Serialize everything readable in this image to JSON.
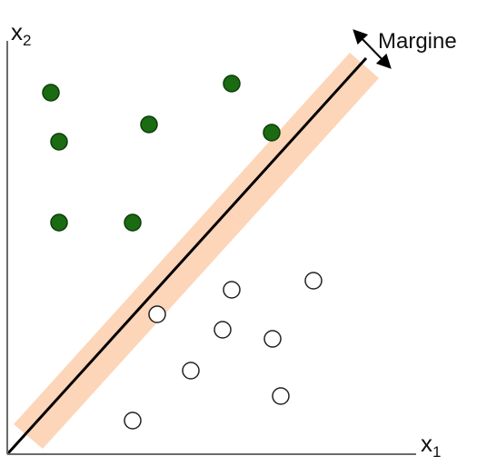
{
  "figure": {
    "axes": {
      "x_label": {
        "main": "x",
        "sub": "1"
      },
      "y_label": {
        "main": "x",
        "sub": "2"
      }
    },
    "margin_label": "Margine",
    "colors": {
      "axis": "#6b6b6b",
      "class_positive_fill": "#1a6b12",
      "class_positive_stroke": "#0e3d0a",
      "class_negative_fill": "#ffffff",
      "class_negative_stroke": "#222222",
      "margin_band": "#fdd5b8",
      "separator": "#000000"
    },
    "classes": [
      {
        "name": "positive-class",
        "style": "filled-green-circle",
        "count": 7
      },
      {
        "name": "negative-class",
        "style": "hollow-circle",
        "count": 8
      }
    ]
  }
}
